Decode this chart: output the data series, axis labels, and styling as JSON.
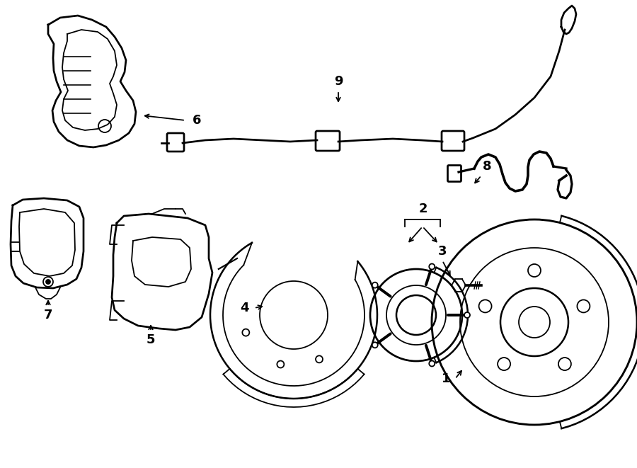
{
  "bg_color": "#ffffff",
  "line_color": "#000000",
  "lw": 1.3,
  "figsize": [
    9.0,
    6.61
  ],
  "dpi": 100
}
